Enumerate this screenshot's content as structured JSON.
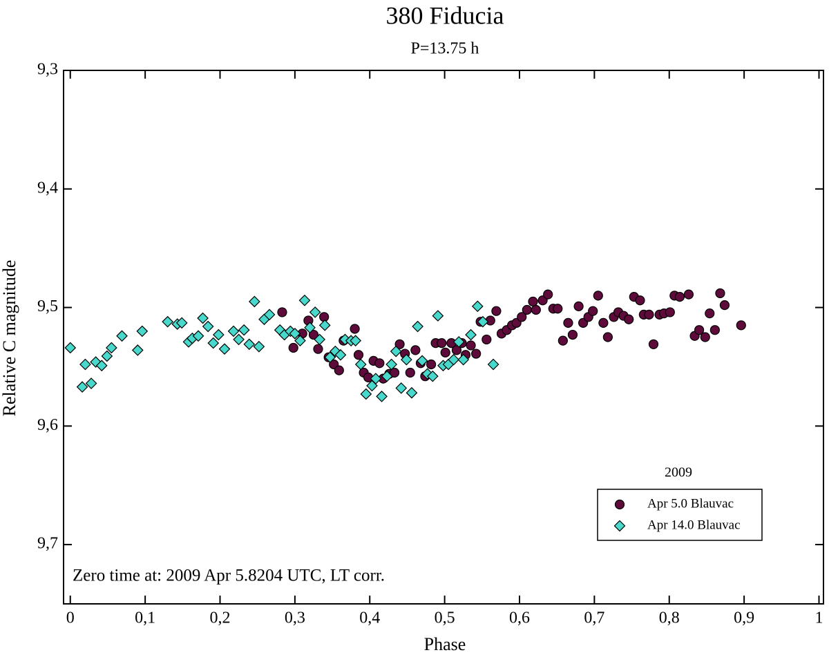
{
  "chart_data": {
    "type": "scatter",
    "title": "380 Fiducia",
    "subtitle": "P=13.75 h",
    "x_label": "Phase",
    "y_label": "Relative C magnitude",
    "annotation": "Zero time at: 2009 Apr 5.8204 UTC, LT corr.",
    "legend_title": "2009",
    "legend_position": "lower right",
    "xlim": [
      -0.009,
      1.006
    ],
    "ylim": [
      9.3,
      9.75
    ],
    "y_inverted": true,
    "xticks": [
      0,
      {
        "value": 0.1,
        "label": "0,1"
      },
      {
        "value": 0.2,
        "label": "0,2"
      },
      {
        "value": 0.3,
        "label": "0,3"
      },
      {
        "value": 0.4,
        "label": "0,4"
      },
      {
        "value": 0.5,
        "label": "0,5"
      },
      {
        "value": 0.6,
        "label": "0,6"
      },
      {
        "value": 0.7,
        "label": "0,7"
      },
      {
        "value": 0.8,
        "label": "0,8"
      },
      {
        "value": 0.9,
        "label": "0,9"
      },
      1
    ],
    "yticks": [
      {
        "value": 9.3,
        "label": "9,3"
      },
      {
        "value": 9.4,
        "label": "9,4"
      },
      {
        "value": 9.5,
        "label": "9,5"
      },
      {
        "value": 9.6,
        "label": "9,6"
      },
      {
        "value": 9.7,
        "label": "9,7"
      }
    ],
    "series": [
      {
        "name": "Apr 5.0 Blauvac",
        "color": "#5e0b3c",
        "marker": "circle",
        "x": [
          0.283,
          0.298,
          0.31,
          0.318,
          0.325,
          0.331,
          0.339,
          0.345,
          0.352,
          0.359,
          0.365,
          0.38,
          0.385,
          0.392,
          0.398,
          0.405,
          0.413,
          0.418,
          0.426,
          0.433,
          0.44,
          0.447,
          0.454,
          0.461,
          0.468,
          0.474,
          0.482,
          0.488,
          0.496,
          0.501,
          0.509,
          0.516,
          0.523,
          0.528,
          0.535,
          0.542,
          0.548,
          0.556,
          0.561,
          0.569,
          0.576,
          0.583,
          0.59,
          0.596,
          0.603,
          0.61,
          0.618,
          0.622,
          0.631,
          0.638,
          0.645,
          0.651,
          0.658,
          0.665,
          0.671,
          0.679,
          0.685,
          0.692,
          0.698,
          0.705,
          0.712,
          0.718,
          0.726,
          0.732,
          0.739,
          0.746,
          0.753,
          0.761,
          0.766,
          0.773,
          0.779,
          0.787,
          0.793,
          0.801,
          0.807,
          0.814,
          0.826,
          0.834,
          0.84,
          0.848,
          0.854,
          0.861,
          0.868,
          0.874,
          0.896
        ],
        "values": [
          9.504,
          9.534,
          9.522,
          9.511,
          9.523,
          9.535,
          9.508,
          9.542,
          9.548,
          9.553,
          9.528,
          9.518,
          9.54,
          9.555,
          9.559,
          9.545,
          9.547,
          9.56,
          9.556,
          9.555,
          9.531,
          9.539,
          9.555,
          9.536,
          9.547,
          9.558,
          9.548,
          9.53,
          9.53,
          9.538,
          9.53,
          9.536,
          9.53,
          9.54,
          9.532,
          9.539,
          9.512,
          9.527,
          9.511,
          9.503,
          9.522,
          9.519,
          9.515,
          9.513,
          9.508,
          9.502,
          9.495,
          9.502,
          9.494,
          9.489,
          9.501,
          9.501,
          9.528,
          9.513,
          9.523,
          9.499,
          9.513,
          9.508,
          9.503,
          9.49,
          9.513,
          9.525,
          9.508,
          9.504,
          9.507,
          9.51,
          9.491,
          9.494,
          9.506,
          9.506,
          9.531,
          9.506,
          9.505,
          9.504,
          9.49,
          9.491,
          9.489,
          9.524,
          9.519,
          9.525,
          9.505,
          9.519,
          9.488,
          9.498,
          9.515
        ]
      },
      {
        "name": "Apr 14.0 Blauvac",
        "color": "#48d8cc",
        "marker": "diamond",
        "x": [
          0.0,
          0.016,
          0.02,
          0.028,
          0.034,
          0.042,
          0.049,
          0.055,
          0.069,
          0.09,
          0.096,
          0.13,
          0.143,
          0.149,
          0.158,
          0.163,
          0.171,
          0.177,
          0.184,
          0.191,
          0.198,
          0.206,
          0.218,
          0.225,
          0.232,
          0.239,
          0.246,
          0.252,
          0.259,
          0.266,
          0.28,
          0.286,
          0.294,
          0.3,
          0.307,
          0.313,
          0.32,
          0.327,
          0.333,
          0.34,
          0.347,
          0.354,
          0.361,
          0.367,
          0.375,
          0.381,
          0.388,
          0.395,
          0.403,
          0.408,
          0.416,
          0.423,
          0.429,
          0.435,
          0.442,
          0.449,
          0.456,
          0.464,
          0.47,
          0.477,
          0.484,
          0.491,
          0.498,
          0.505,
          0.512,
          0.519,
          0.525,
          0.535,
          0.544,
          0.551,
          0.565
        ],
        "values": [
          9.534,
          9.567,
          9.548,
          9.564,
          9.546,
          9.549,
          9.541,
          9.534,
          9.524,
          9.536,
          9.52,
          9.512,
          9.514,
          9.513,
          9.529,
          9.526,
          9.524,
          9.509,
          9.516,
          9.53,
          9.523,
          9.535,
          9.52,
          9.527,
          9.519,
          9.531,
          9.495,
          9.533,
          9.51,
          9.506,
          9.519,
          9.523,
          9.52,
          9.522,
          9.528,
          9.494,
          9.517,
          9.504,
          9.527,
          9.515,
          9.542,
          9.537,
          9.54,
          9.527,
          9.528,
          9.528,
          9.548,
          9.573,
          9.566,
          9.56,
          9.575,
          9.558,
          9.548,
          9.537,
          9.568,
          9.544,
          9.572,
          9.516,
          9.545,
          9.556,
          9.558,
          9.507,
          9.549,
          9.548,
          9.544,
          9.529,
          9.544,
          9.523,
          9.499,
          9.512,
          9.548
        ]
      }
    ]
  }
}
